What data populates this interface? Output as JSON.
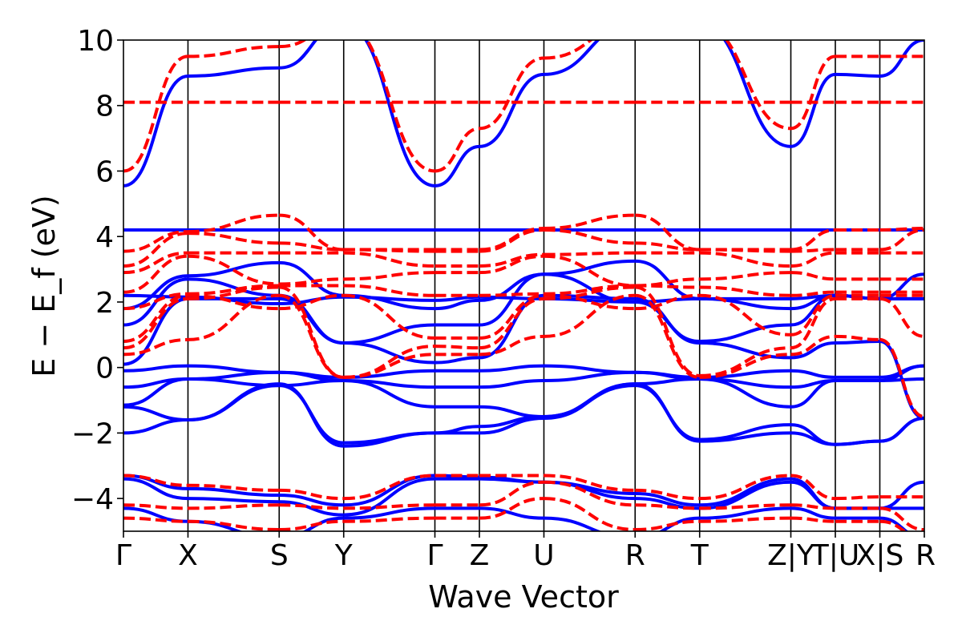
{
  "chart_data": {
    "type": "line",
    "title": "",
    "xlabel": "Wave Vector",
    "ylabel": "E − E_f (eV)",
    "ylim": [
      -5,
      10
    ],
    "y_ticks": [
      10,
      8,
      6,
      4,
      2,
      0,
      -2,
      -4
    ],
    "y_tick_labels": [
      "10",
      "8",
      "6",
      "4",
      "2",
      "0",
      "−2",
      "−4"
    ],
    "grid": false,
    "legend": "none",
    "colors": {
      "series_a": "#0000ff",
      "series_b": "#ff0000",
      "kline": "#000000"
    },
    "k_path": {
      "segments": [
        {
          "from": "Γ",
          "to": "X",
          "length": 1.45
        },
        {
          "from": "X",
          "to": "S",
          "length": 2.05
        },
        {
          "from": "S",
          "to": "Y",
          "length": 1.45
        },
        {
          "from": "Y",
          "to": "Γ",
          "length": 2.05
        },
        {
          "from": "Γ",
          "to": "Z",
          "length": 1.0
        },
        {
          "from": "Z",
          "to": "U",
          "length": 1.45
        },
        {
          "from": "U",
          "to": "R",
          "length": 2.05
        },
        {
          "from": "R",
          "to": "T",
          "length": 1.45
        },
        {
          "from": "T",
          "to": "Z",
          "length": 2.05
        },
        {
          "from": "Y",
          "to": "T",
          "length": 1.0
        },
        {
          "from": "U",
          "to": "X",
          "length": 1.0
        },
        {
          "from": "S",
          "to": "R",
          "length": 1.0
        }
      ],
      "tick_labels": [
        "Γ",
        "X",
        "S",
        "Y",
        "Γ",
        "Z",
        "U",
        "R",
        "T",
        "Z|Y",
        "T|U",
        "X|S",
        "R"
      ]
    },
    "series": [
      {
        "style": "solid",
        "color": "#0000ff",
        "bands": [
          [
            -2.0,
            -1.6,
            -0.5,
            -2.4,
            -2.0,
            -2.0,
            -1.55,
            -0.5,
            -2.25,
            -2.0,
            -2.35,
            -2.25,
            -1.55,
            -1.5,
            -0.6,
            -0.6
          ],
          [
            -1.2,
            -1.6,
            -0.55,
            -2.3,
            -2.0,
            -1.8,
            -1.5,
            -0.55,
            -2.2,
            -1.75,
            -2.35,
            -2.25,
            -1.55,
            -1.5,
            -0.55,
            -0.55
          ],
          [
            -1.15,
            -0.35,
            -0.55,
            -0.4,
            -1.2,
            -1.2,
            -1.5,
            -0.5,
            -0.35,
            -1.2,
            -0.4,
            -0.4,
            -0.35,
            -0.35,
            -0.55,
            -0.55
          ],
          [
            -0.6,
            -0.35,
            -0.15,
            -0.4,
            -0.6,
            -0.6,
            -0.4,
            -0.15,
            -0.35,
            -0.6,
            -0.4,
            -0.4,
            0.05,
            0.05,
            -0.15,
            -0.15
          ],
          [
            -0.1,
            0.05,
            -0.15,
            -0.3,
            -0.1,
            -0.1,
            0.05,
            -0.15,
            -0.3,
            -0.1,
            -0.3,
            -0.3,
            0.05,
            0.05,
            -0.15,
            -0.15
          ],
          [
            0.1,
            2.1,
            2.1,
            0.75,
            0.15,
            0.3,
            2.2,
            2.1,
            0.75,
            0.3,
            0.75,
            0.8,
            -1.55,
            -1.6,
            2.05,
            2.0
          ],
          [
            1.3,
            2.7,
            2.2,
            0.75,
            1.3,
            1.3,
            2.85,
            2.0,
            0.8,
            1.3,
            2.2,
            2.1,
            2.1,
            2.1,
            3.25,
            3.25
          ],
          [
            1.8,
            2.8,
            3.2,
            2.2,
            1.8,
            2.05,
            2.85,
            3.25,
            2.1,
            1.8,
            2.2,
            2.1,
            2.85,
            2.8,
            3.25,
            3.25
          ],
          [
            2.2,
            2.15,
            1.95,
            2.15,
            2.05,
            2.15,
            2.1,
            2.0,
            2.1,
            2.1,
            2.2,
            2.1,
            2.1,
            2.1,
            2.0,
            2.0
          ],
          [
            4.2,
            4.2,
            4.2,
            4.2,
            4.2,
            4.2,
            4.2,
            4.2,
            4.2,
            4.2,
            4.2,
            4.2,
            4.2,
            4.2,
            4.2,
            4.2
          ],
          [
            5.55,
            8.9,
            9.15,
            10.5,
            5.55,
            6.75,
            8.95,
            10.5,
            10.5,
            6.75,
            8.95,
            8.9,
            10.0,
            9.9,
            9.15,
            9.8
          ],
          [
            -3.3,
            -3.7,
            -3.9,
            -4.2,
            -3.3,
            -3.35,
            -3.5,
            -3.85,
            -4.2,
            -3.4,
            -4.3,
            -4.3,
            -3.5,
            -3.6,
            -3.85,
            -3.85
          ],
          [
            -3.4,
            -4.0,
            -4.1,
            -4.5,
            -3.4,
            -3.4,
            -3.5,
            -4.0,
            -4.3,
            -3.5,
            -4.3,
            -4.3,
            -4.3,
            -4.35,
            -4.05,
            -4.0
          ],
          [
            -4.3,
            -4.7,
            -5.2,
            -4.6,
            -4.3,
            -4.3,
            -4.6,
            -5.2,
            -4.6,
            -4.3,
            -4.6,
            -4.6,
            -5.2,
            -5.2,
            -5.2,
            -5.2
          ]
        ]
      },
      {
        "style": "dashed",
        "color": "#ff0000",
        "bands": [
          [
            0.4,
            0.85,
            2.2,
            -0.3,
            0.4,
            0.4,
            0.95,
            2.2,
            -0.3,
            0.4,
            0.95,
            0.85,
            -1.5,
            -1.5,
            1.75,
            1.75
          ],
          [
            0.6,
            2.1,
            2.45,
            -0.3,
            0.65,
            0.6,
            2.1,
            2.45,
            -0.25,
            0.6,
            2.1,
            2.1,
            0.95,
            0.9,
            1.9,
            1.9
          ],
          [
            0.8,
            2.2,
            1.8,
            2.2,
            0.9,
            0.9,
            2.2,
            1.8,
            2.2,
            1.0,
            2.2,
            2.2,
            2.2,
            2.2,
            1.8,
            1.8
          ],
          [
            1.8,
            2.25,
            2.5,
            2.5,
            2.2,
            2.2,
            2.25,
            2.5,
            2.45,
            2.2,
            2.3,
            2.3,
            2.3,
            2.3,
            2.55,
            2.55
          ],
          [
            2.3,
            3.4,
            2.55,
            2.7,
            2.9,
            2.9,
            3.4,
            2.5,
            2.7,
            2.9,
            2.7,
            2.7,
            2.7,
            2.7,
            2.55,
            2.55
          ],
          [
            2.9,
            3.5,
            3.5,
            3.5,
            3.1,
            3.1,
            3.45,
            3.5,
            3.5,
            3.1,
            3.5,
            3.5,
            3.5,
            3.45,
            3.5,
            3.5
          ],
          [
            3.1,
            4.1,
            3.8,
            3.6,
            3.55,
            3.55,
            4.2,
            3.8,
            3.6,
            3.55,
            3.6,
            3.6,
            4.2,
            4.1,
            3.8,
            3.8
          ],
          [
            3.55,
            4.15,
            4.65,
            3.6,
            3.6,
            3.6,
            4.25,
            4.65,
            3.6,
            3.6,
            4.2,
            4.2,
            4.25,
            4.15,
            4.65,
            4.65
          ],
          [
            6.0,
            9.5,
            9.8,
            10.5,
            6.0,
            7.3,
            9.45,
            10.5,
            10.5,
            7.3,
            9.5,
            9.5,
            9.5,
            9.5,
            9.8,
            9.8
          ],
          [
            8.1,
            8.1,
            8.1,
            8.1,
            8.1,
            8.1,
            8.1,
            8.1,
            8.1,
            8.1,
            8.1,
            8.1,
            8.1,
            8.1,
            8.1,
            8.1
          ],
          [
            -3.3,
            -3.6,
            -3.75,
            -4.0,
            -3.3,
            -3.3,
            -3.3,
            -3.75,
            -4.0,
            -3.3,
            -4.0,
            -3.95,
            -3.95,
            -4.0,
            -3.75,
            -3.75
          ],
          [
            -4.2,
            -4.3,
            -4.2,
            -4.3,
            -4.2,
            -4.2,
            -3.5,
            -4.2,
            -4.3,
            -4.2,
            -4.3,
            -4.3,
            -4.95,
            -5.1,
            -4.2,
            -4.2
          ],
          [
            -4.6,
            -4.7,
            -4.95,
            -4.7,
            -4.6,
            -4.6,
            -4.0,
            -4.95,
            -4.7,
            -4.6,
            -4.7,
            -4.7,
            -5.2,
            -5.2,
            -4.95,
            -4.95
          ]
        ]
      }
    ]
  }
}
